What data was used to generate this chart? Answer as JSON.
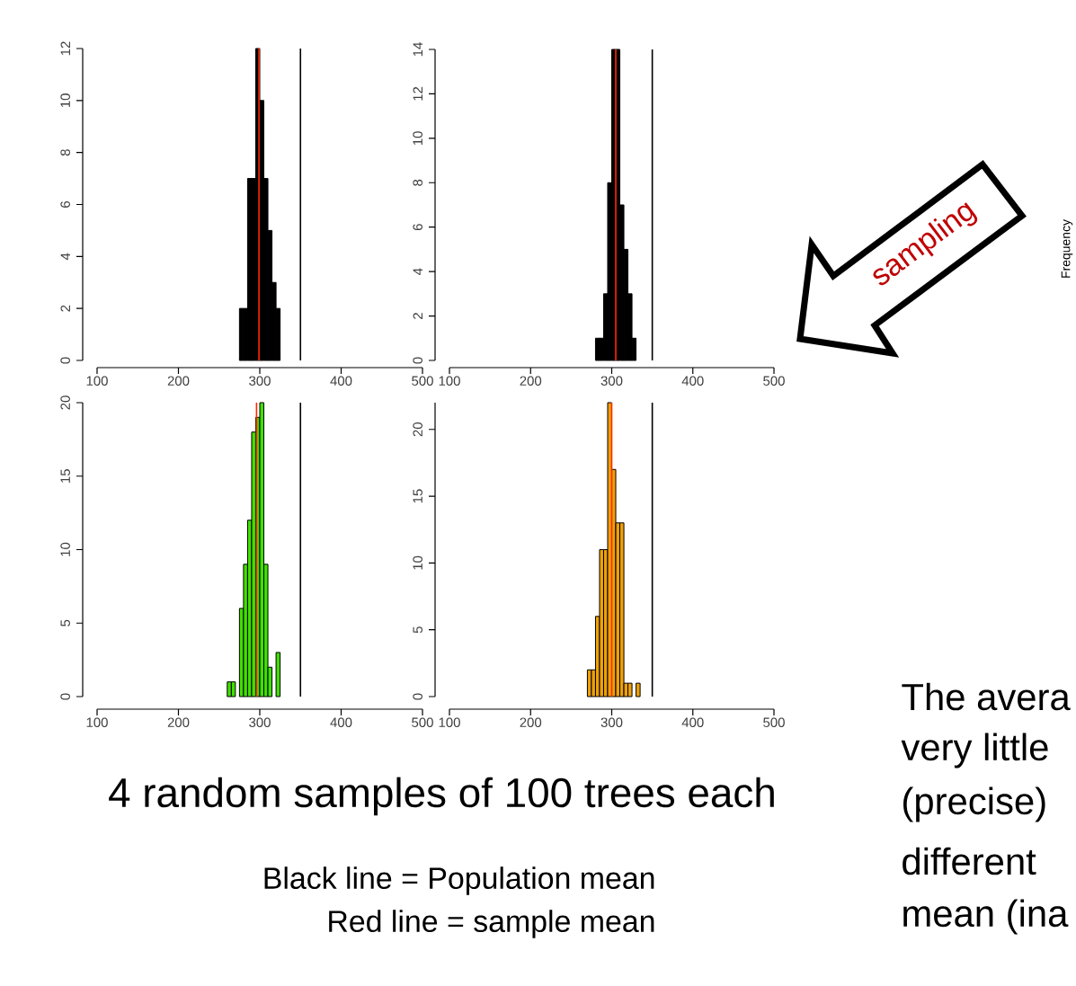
{
  "chart_data": [
    {
      "type": "histogram",
      "bins": [
        275,
        280,
        285,
        290,
        295,
        300,
        305,
        310,
        315,
        320,
        325
      ],
      "values": [
        2,
        2,
        7,
        7,
        12,
        10,
        7,
        5,
        3,
        2
      ],
      "color": "#000000",
      "xlim": [
        100,
        500
      ],
      "ylim": [
        0,
        12
      ],
      "xticks": [
        100,
        200,
        300,
        400,
        500
      ],
      "yticks": [
        0,
        2,
        4,
        6,
        8,
        10,
        12
      ],
      "ref_lines": [
        {
          "axis": "x",
          "value": 350,
          "color": "#000000"
        },
        {
          "axis": "x",
          "value": 299,
          "color": "#ff2a00"
        }
      ]
    },
    {
      "type": "histogram",
      "bins": [
        280,
        285,
        290,
        295,
        300,
        305,
        310,
        315,
        320,
        325,
        330
      ],
      "values": [
        1,
        1,
        3,
        8,
        14,
        14,
        7,
        5,
        3,
        1
      ],
      "color": "#000000",
      "xlim": [
        100,
        500
      ],
      "ylim": [
        0,
        14
      ],
      "xticks": [
        100,
        200,
        300,
        400,
        500
      ],
      "yticks": [
        0,
        2,
        4,
        6,
        8,
        10,
        12,
        14
      ],
      "ref_lines": [
        {
          "axis": "x",
          "value": 350,
          "color": "#000000"
        },
        {
          "axis": "x",
          "value": 305,
          "color": "#ff2a00"
        }
      ]
    },
    {
      "type": "histogram",
      "bins": [
        260,
        265,
        270,
        275,
        280,
        285,
        290,
        295,
        300,
        305,
        310,
        315,
        320,
        325
      ],
      "values": [
        1,
        1,
        0,
        6,
        9,
        12,
        18,
        19,
        20,
        9,
        2,
        0,
        3
      ],
      "color": "#40e000",
      "xlim": [
        100,
        500
      ],
      "ylim": [
        0,
        20
      ],
      "xticks": [
        100,
        200,
        300,
        400,
        500
      ],
      "yticks": [
        0,
        5,
        10,
        15,
        20
      ],
      "ref_lines": [
        {
          "axis": "x",
          "value": 350,
          "color": "#000000"
        },
        {
          "axis": "x",
          "value": 296,
          "color": "#ff2a00"
        }
      ]
    },
    {
      "type": "histogram",
      "bins": [
        270,
        275,
        280,
        285,
        290,
        295,
        300,
        305,
        310,
        315,
        320,
        325,
        330,
        335
      ],
      "values": [
        2,
        2,
        6,
        11,
        11,
        22,
        17,
        13,
        13,
        1,
        1,
        0,
        1
      ],
      "color": "#eea10a",
      "xlim": [
        100,
        500
      ],
      "ylim": [
        0,
        22
      ],
      "xticks": [
        100,
        200,
        300,
        400,
        500
      ],
      "yticks": [
        0,
        5,
        10,
        15,
        20
      ],
      "ref_lines": [
        {
          "axis": "x",
          "value": 350,
          "color": "#000000"
        },
        {
          "axis": "x",
          "value": 300,
          "color": "#ff2a00"
        }
      ]
    },
    {
      "type": "other",
      "annotations": [
        "4 random samples of 100 trees each",
        "Black line = Population mean",
        "Red line = sample mean",
        "sampling",
        "Frequency",
        "The avera",
        "very little",
        "(precise)",
        "different",
        "mean (ina"
      ]
    }
  ]
}
